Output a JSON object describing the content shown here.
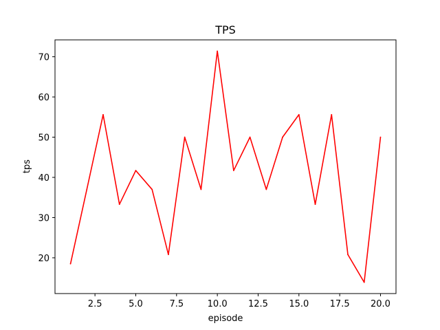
{
  "chart_data": {
    "type": "line",
    "title": "TPS",
    "xlabel": "episode",
    "ylabel": "tps",
    "xlim": [
      0.05,
      20.95
    ],
    "ylim": [
      11.1,
      74.2
    ],
    "x_ticks": [
      2.5,
      5.0,
      7.5,
      10.0,
      12.5,
      15.0,
      17.5,
      20.0
    ],
    "x_tick_labels": [
      "2.5",
      "5.0",
      "7.5",
      "10.0",
      "12.5",
      "15.0",
      "17.5",
      "20.0"
    ],
    "y_ticks": [
      20,
      30,
      40,
      50,
      60,
      70
    ],
    "y_tick_labels": [
      "20",
      "30",
      "40",
      "50",
      "60",
      "70"
    ],
    "grid": false,
    "series": [
      {
        "color": "#ff0000",
        "x": [
          1,
          2,
          3,
          4,
          5,
          6,
          7,
          8,
          9,
          10,
          11,
          12,
          13,
          14,
          15,
          16,
          17,
          18,
          19,
          20
        ],
        "y": [
          18.5,
          37.0,
          55.6,
          33.3,
          41.7,
          37.0,
          20.8,
          50.0,
          37.0,
          71.4,
          41.7,
          50.0,
          37.0,
          50.0,
          55.6,
          33.3,
          55.6,
          20.8,
          13.9,
          50.0
        ]
      }
    ]
  }
}
